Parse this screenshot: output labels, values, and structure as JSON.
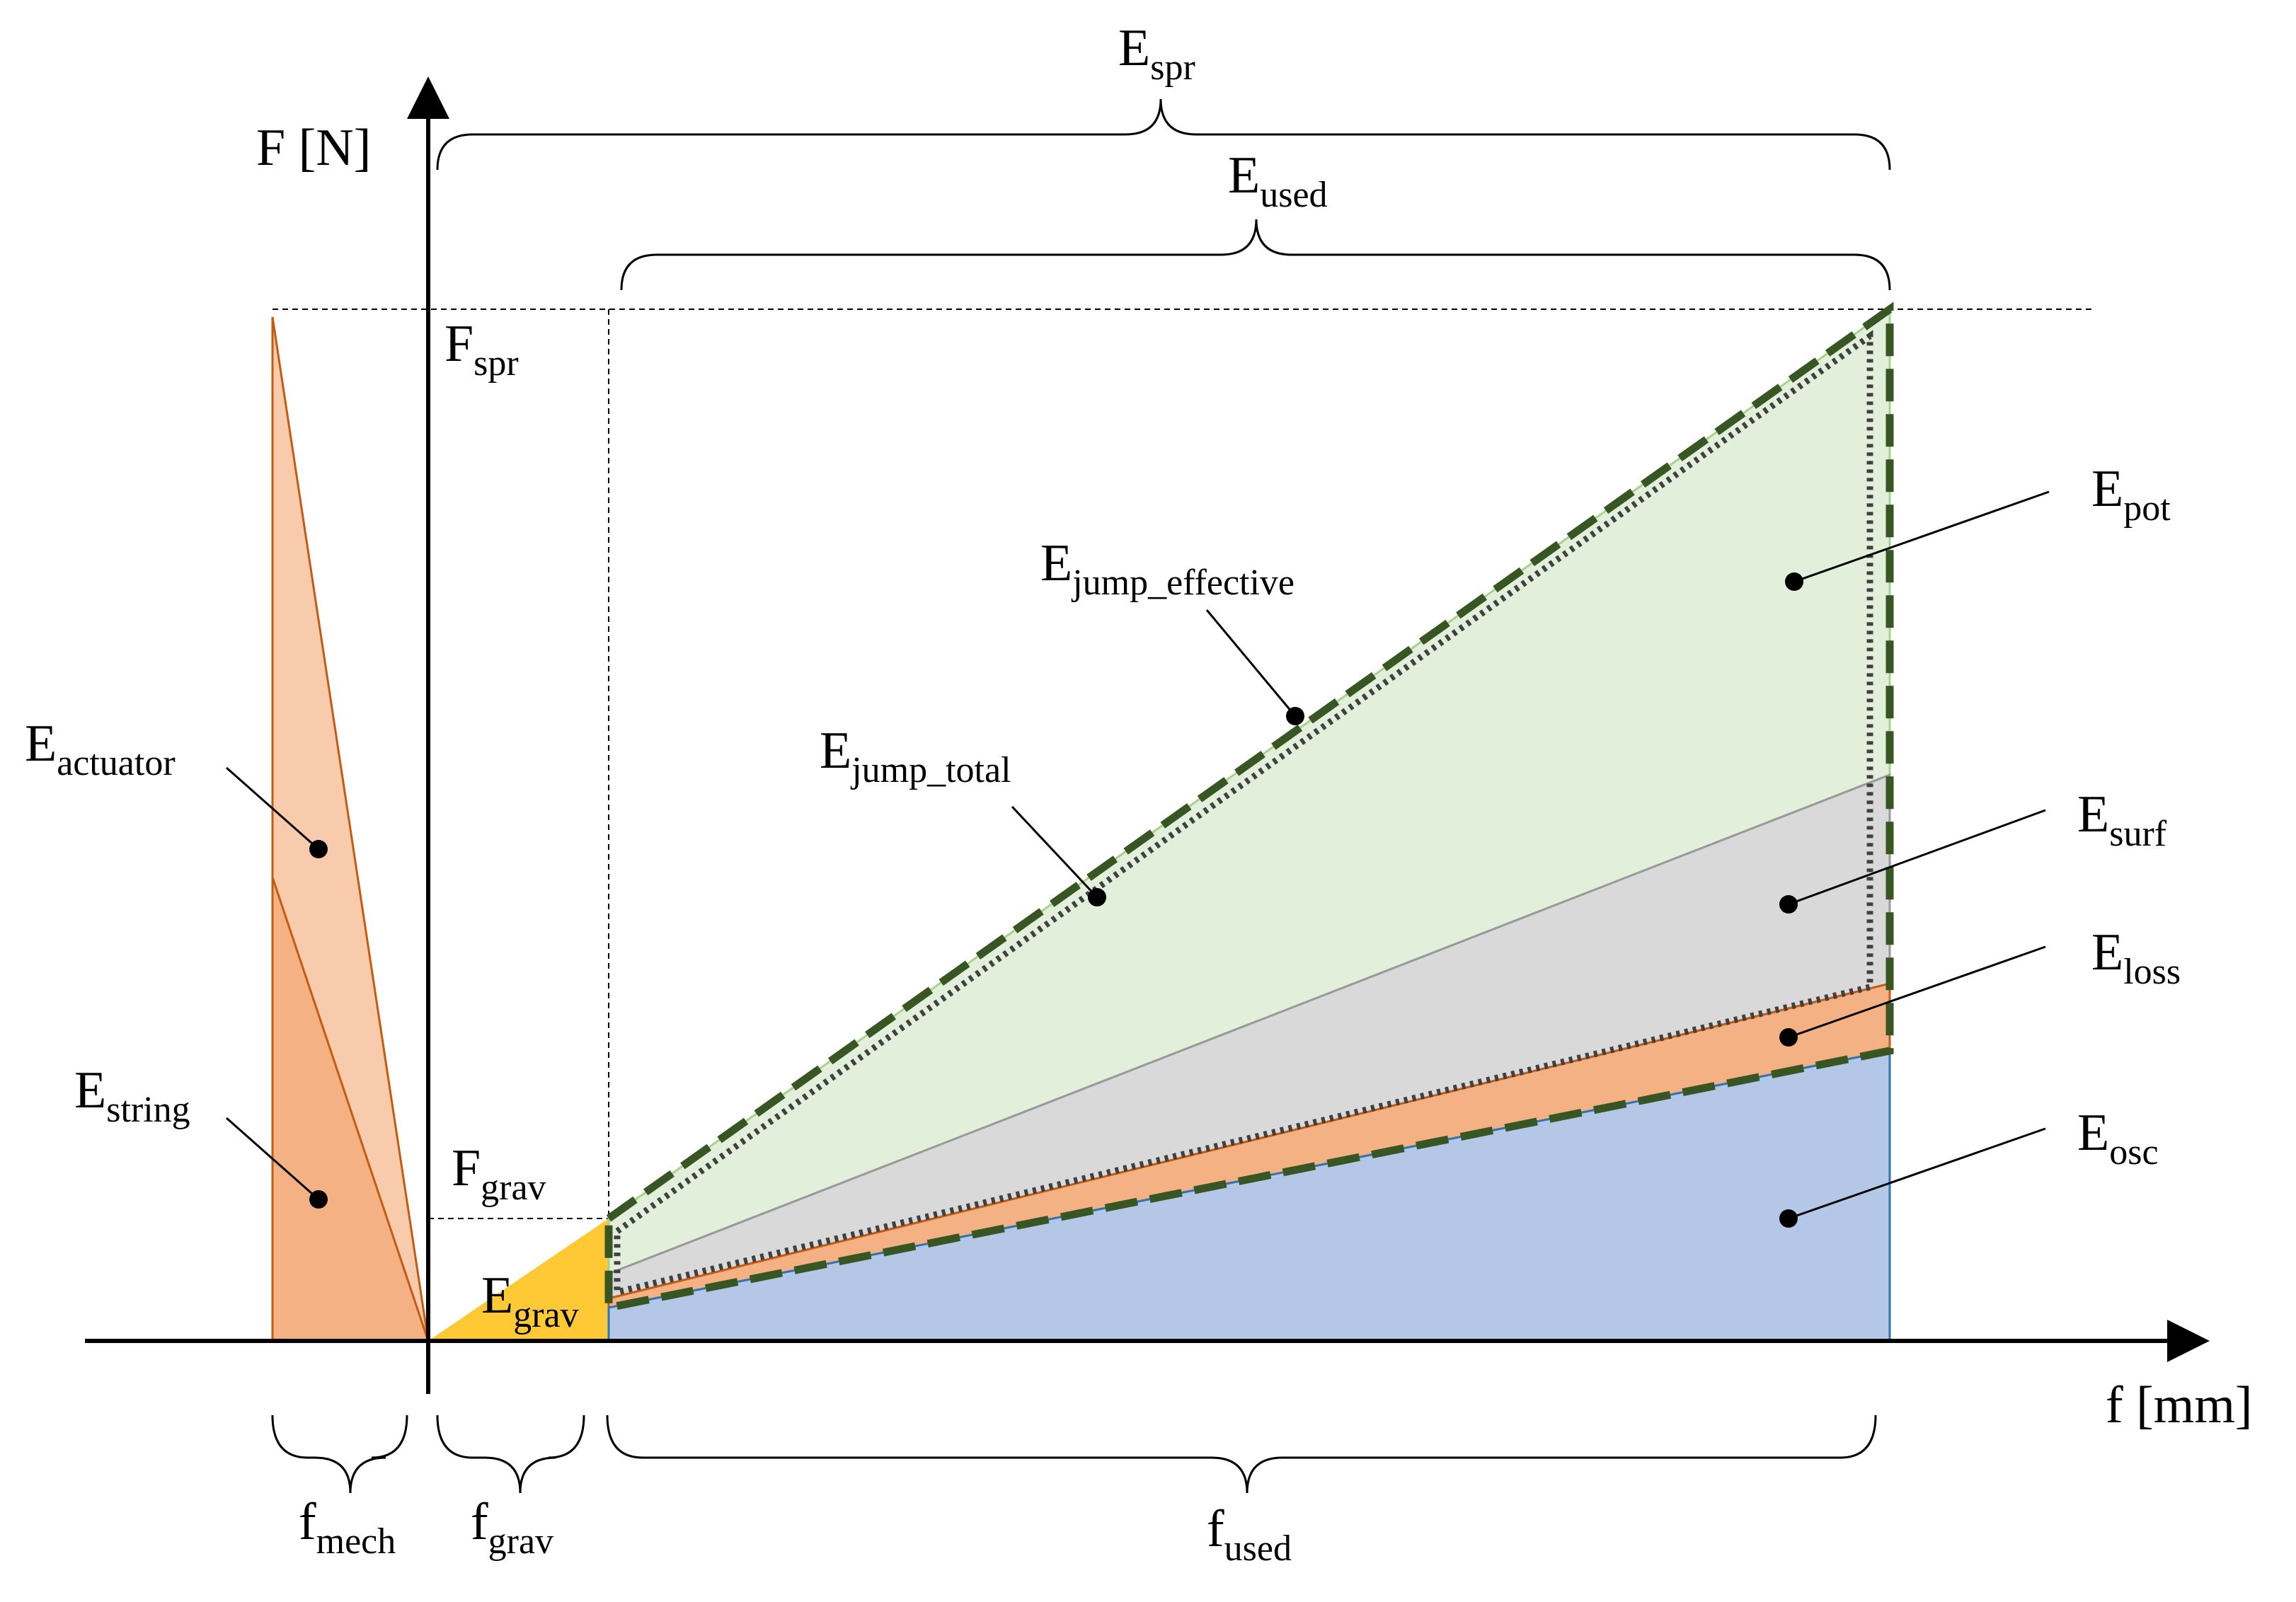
{
  "axes": {
    "y_label": "F [N]",
    "x_label": "f [mm]"
  },
  "labels": {
    "E_spr": {
      "main": "E",
      "sub": "spr"
    },
    "E_used": {
      "main": "E",
      "sub": "used"
    },
    "F_spr": {
      "main": "F",
      "sub": "spr"
    },
    "F_grav": {
      "main": "F",
      "sub": "grav"
    },
    "E_grav": {
      "main": "E",
      "sub": "grav"
    },
    "E_pot": {
      "main": "E",
      "sub": "pot"
    },
    "E_surf": {
      "main": "E",
      "sub": "surf"
    },
    "E_loss": {
      "main": "E",
      "sub": "loss"
    },
    "E_osc": {
      "main": "E",
      "sub": "osc"
    },
    "E_jump_effective": {
      "main": "E",
      "sub": "jump_effective"
    },
    "E_jump_total": {
      "main": "E",
      "sub": "jump_total"
    },
    "E_actuator": {
      "main": "E",
      "sub": "actuator"
    },
    "E_string": {
      "main": "E",
      "sub": "string"
    },
    "f_mech": {
      "main": "f",
      "sub": "mech"
    },
    "f_grav": {
      "main": "f",
      "sub": "grav"
    },
    "f_used": {
      "main": "f",
      "sub": "used"
    }
  },
  "colors": {
    "pot": "#e2efda",
    "surf": "#d9d9d9",
    "loss": "#f4b183",
    "osc": "#b4c7e7",
    "grav": "#ffc935",
    "actuator": "#f8cbad",
    "string": "#f4b183",
    "dash_green": "#375623",
    "dotted_gray": "#404040",
    "outline_brown": "#c55a11",
    "outline_blue": "#2e75b6"
  }
}
